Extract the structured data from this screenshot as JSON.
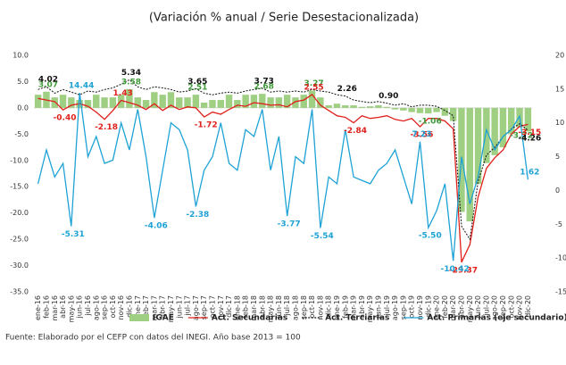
{
  "chart_data": {
    "type": "bar",
    "title": "(Variación % anual / Serie Desestacionalizada)",
    "source": "Fuente: Elaborado por el CEFP con datos del INEGI. Año base 2013 = 100",
    "categories": [
      "ene-16",
      "feb-16",
      "mar-16",
      "abr-16",
      "may-16",
      "jun-16",
      "jul-16",
      "ago-16",
      "sep-16",
      "oct-16",
      "nov-16",
      "dic-16",
      "ene-17",
      "feb-17",
      "mar-17",
      "abr-17",
      "may-17",
      "jun-17",
      "jul-17",
      "ago-17",
      "sep-17",
      "oct-17",
      "nov-17",
      "dic-17",
      "ene-18",
      "feb-18",
      "mar-18",
      "abr-18",
      "may-18",
      "jun-18",
      "jul-18",
      "ago-18",
      "sep-18",
      "oct-18",
      "nov-18",
      "dic-18",
      "ene-19",
      "feb-19",
      "mar-19",
      "abr-19",
      "may-19",
      "jun-19",
      "jul-19",
      "ago-19",
      "sep-19",
      "oct-19",
      "nov-19",
      "dic-19",
      "ene-20",
      "feb-20",
      "mar-20",
      "abr-20",
      "may-20",
      "jun-20",
      "jul-20",
      "ago-20",
      "sep-20",
      "oct-20",
      "nov-20",
      "dic-20"
    ],
    "series": [
      {
        "name": "IGAE",
        "type": "bar",
        "color": "#9fcf82",
        "label_color": "#3f9a3a",
        "values": [
          2.5,
          3.07,
          2.0,
          2.5,
          2.0,
          1.5,
          1.5,
          2.5,
          2.0,
          2.0,
          2.5,
          3.58,
          2.0,
          1.5,
          3.0,
          2.5,
          3.0,
          2.0,
          2.0,
          2.51,
          1.0,
          1.5,
          1.5,
          2.5,
          1.5,
          2.5,
          2.5,
          2.68,
          2.0,
          2.0,
          2.5,
          2.0,
          2.5,
          3.27,
          2.0,
          0.5,
          0.8,
          0.5,
          0.5,
          0.2,
          0.3,
          0.5,
          0.2,
          -0.3,
          -0.5,
          -0.8,
          -1.0,
          -1.06,
          -0.8,
          -1.5,
          -2.5,
          -19.8,
          -21.6,
          -14.5,
          -10.5,
          -9.0,
          -7.5,
          -5.0,
          -3.72,
          -4.5
        ],
        "value_labels": [
          null,
          "3.07",
          null,
          null,
          null,
          null,
          null,
          null,
          null,
          null,
          null,
          "3.58",
          null,
          null,
          null,
          null,
          null,
          null,
          null,
          "2.51",
          null,
          null,
          null,
          null,
          null,
          null,
          null,
          "2.68",
          null,
          null,
          null,
          null,
          null,
          "3.27",
          null,
          null,
          null,
          null,
          null,
          null,
          null,
          null,
          null,
          null,
          null,
          null,
          null,
          "-1.06",
          null,
          null,
          null,
          null,
          null,
          null,
          null,
          null,
          null,
          null,
          "-3.72",
          null
        ]
      },
      {
        "name": "Act. Secundarias",
        "type": "line",
        "color": "#e0201b",
        "label_color": "#e0201b",
        "values": [
          1.8,
          1.5,
          1.2,
          -0.4,
          0.5,
          0.8,
          0.3,
          -0.8,
          -2.18,
          -0.5,
          1.43,
          1.0,
          0.5,
          -0.3,
          0.8,
          -0.5,
          0.5,
          -0.3,
          0.2,
          0.0,
          -1.72,
          -0.8,
          -1.2,
          -0.3,
          0.5,
          0.3,
          1.0,
          0.8,
          0.5,
          0.6,
          0.2,
          1.2,
          1.5,
          2.55,
          0.5,
          -0.5,
          -1.5,
          -1.8,
          -2.84,
          -1.5,
          -2.0,
          -1.8,
          -1.5,
          -2.2,
          -2.5,
          -2.0,
          -3.56,
          -2.0,
          -2.0,
          -2.5,
          -4.0,
          -29.37,
          -26.0,
          -17.0,
          -11.5,
          -9.5,
          -8.0,
          -5.0,
          -3.5,
          -3.15
        ],
        "value_labels": [
          null,
          null,
          null,
          "-0.40",
          null,
          null,
          null,
          null,
          "-2.18",
          null,
          "1.43",
          null,
          null,
          null,
          null,
          null,
          null,
          null,
          null,
          null,
          "-1.72",
          null,
          null,
          null,
          null,
          null,
          null,
          null,
          null,
          null,
          null,
          null,
          null,
          "2.55",
          null,
          null,
          null,
          null,
          "-2.84",
          null,
          null,
          null,
          null,
          null,
          null,
          null,
          "-3.56",
          null,
          null,
          null,
          null,
          "-29.37",
          null,
          null,
          null,
          null,
          null,
          null,
          null,
          "-3.15"
        ]
      },
      {
        "name": "Act. Terciarias",
        "type": "line",
        "color": "#111111",
        "label_color": "#111111",
        "dashed": true,
        "values": [
          3.5,
          4.02,
          2.8,
          3.5,
          3.0,
          2.5,
          3.2,
          3.0,
          3.5,
          3.8,
          4.5,
          5.34,
          4.0,
          3.5,
          4.0,
          3.8,
          3.5,
          3.0,
          3.2,
          3.65,
          2.8,
          2.5,
          2.8,
          3.0,
          2.8,
          3.2,
          3.5,
          3.73,
          3.0,
          3.2,
          3.0,
          3.2,
          3.0,
          3.5,
          3.2,
          3.0,
          2.5,
          2.26,
          1.5,
          1.2,
          1.0,
          1.2,
          0.9,
          0.5,
          0.8,
          0.2,
          0.5,
          0.5,
          0.3,
          -0.5,
          -1.5,
          -22.5,
          -25.0,
          -14.0,
          -9.0,
          -7.5,
          -5.5,
          -4.0,
          -3.0,
          -4.26
        ],
        "value_labels": [
          null,
          "4.02",
          null,
          null,
          null,
          null,
          null,
          null,
          null,
          null,
          null,
          "5.34",
          null,
          null,
          null,
          null,
          null,
          null,
          null,
          "3.65",
          null,
          null,
          null,
          null,
          null,
          null,
          null,
          "3.73",
          null,
          null,
          null,
          null,
          null,
          null,
          null,
          null,
          null,
          "2.26",
          null,
          null,
          null,
          null,
          "0.90",
          null,
          null,
          null,
          null,
          null,
          null,
          null,
          null,
          null,
          null,
          null,
          null,
          null,
          null,
          null,
          null,
          "-4.26"
        ]
      },
      {
        "name": "Act. Primarias (eje secundario)",
        "type": "line",
        "axis": "y2",
        "color": "#1ea2d6",
        "label_color": "#1ea2d6",
        "values": [
          1,
          6,
          2,
          4,
          -5.31,
          14.44,
          5,
          8,
          4,
          4.5,
          10,
          6,
          12,
          5,
          -4.06,
          3,
          10,
          9,
          6,
          -2.38,
          3,
          5,
          10,
          4,
          3,
          9,
          8,
          12,
          3,
          8,
          -3.77,
          5,
          4,
          12,
          -5.54,
          2,
          1,
          9,
          2,
          1.5,
          1,
          3,
          4,
          6,
          2,
          -2,
          7.23,
          -5.5,
          -3,
          1,
          -10.42,
          5,
          -2,
          2,
          9,
          6,
          8,
          9,
          11,
          1.62
        ],
        "value_labels": [
          null,
          null,
          null,
          null,
          "-5.31",
          "14.44",
          null,
          null,
          null,
          null,
          null,
          null,
          null,
          null,
          "-4.06",
          null,
          null,
          null,
          null,
          "-2.38",
          null,
          null,
          null,
          null,
          null,
          null,
          null,
          null,
          null,
          null,
          "-3.77",
          null,
          null,
          null,
          "-5.54",
          null,
          null,
          null,
          null,
          null,
          null,
          null,
          null,
          null,
          null,
          null,
          "7.23",
          "-5.50",
          null,
          null,
          "-10.42",
          null,
          null,
          null,
          null,
          null,
          null,
          null,
          null,
          "1.62"
        ]
      }
    ],
    "ylim": [
      -35,
      10
    ],
    "yticks": [
      {
        "value": 10,
        "label": "10.0"
      },
      {
        "value": 5,
        "label": "5.0"
      },
      {
        "value": 0,
        "label": "0.0"
      },
      {
        "value": -5,
        "label": "-5.0"
      },
      {
        "value": -10,
        "label": "-10.0"
      },
      {
        "value": -15,
        "label": "-15.0"
      },
      {
        "value": -20,
        "label": "-20.0"
      },
      {
        "value": -25,
        "label": "-25.0"
      },
      {
        "value": -30,
        "label": "-30.0"
      },
      {
        "value": -35,
        "label": "-35.0"
      }
    ],
    "y2lim": [
      -15,
      20
    ],
    "y2ticks": [
      20,
      15,
      10,
      5,
      0,
      -5,
      -10,
      -15
    ],
    "legend": "bottom"
  }
}
